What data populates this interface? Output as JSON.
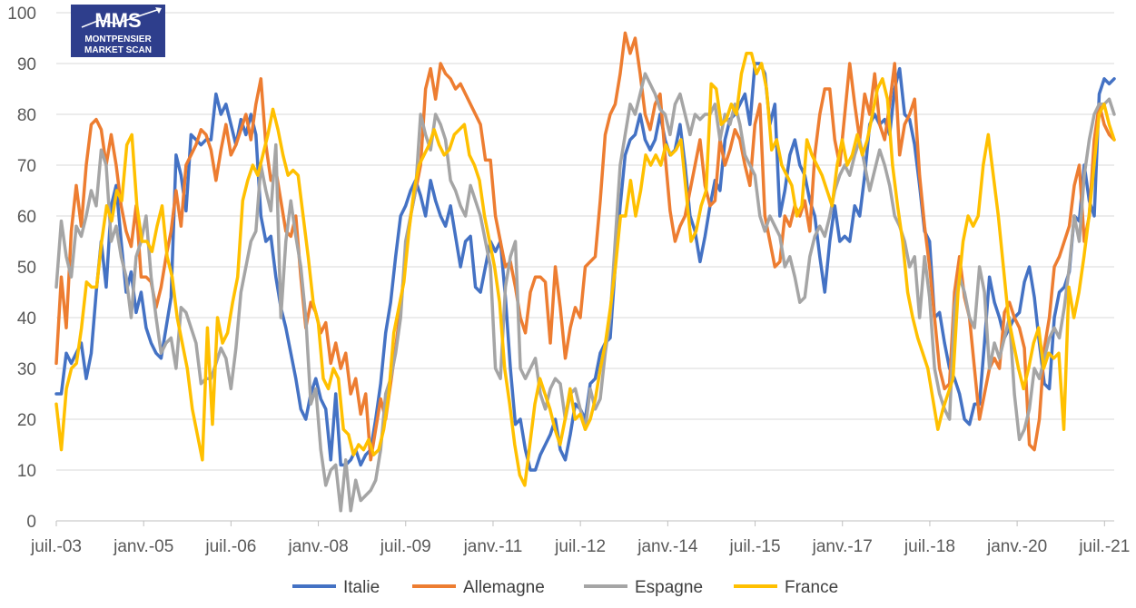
{
  "logo": {
    "mark": "MMS",
    "line1": "MONTPENSIER",
    "line2": "MARKET SCAN",
    "bg_color": "#2e3e8c"
  },
  "chart_data": {
    "type": "line",
    "title": "",
    "xlabel": "",
    "ylabel": "",
    "ylim": [
      0,
      100
    ],
    "yticks": [
      0,
      10,
      20,
      30,
      40,
      50,
      60,
      70,
      80,
      90,
      100
    ],
    "x_tick_labels": [
      "juil.-03",
      "janv.-05",
      "juil.-06",
      "janv.-08",
      "juil.-09",
      "janv.-11",
      "juil.-12",
      "janv.-14",
      "juil.-15",
      "janv.-17",
      "juil.-18",
      "janv.-20",
      "juil.-21"
    ],
    "x_start": "2003-07",
    "x_end": "2021-09",
    "grid": "horizontal",
    "legend_position": "bottom",
    "series": [
      {
        "name": "Italie",
        "color": "#4472c4",
        "values": [
          25,
          25,
          33,
          31,
          33,
          35,
          28,
          33,
          45,
          55,
          46,
          62,
          66,
          55,
          45,
          49,
          41,
          45,
          38,
          35,
          33,
          32,
          38,
          44,
          72,
          68,
          61,
          76,
          75,
          74,
          75,
          75,
          84,
          80,
          82,
          78,
          74,
          79,
          76,
          80,
          76,
          60,
          55,
          56,
          48,
          42,
          38,
          33,
          28,
          22,
          20,
          25,
          28,
          24,
          22,
          12,
          25,
          11,
          11,
          12,
          14,
          11,
          13,
          14,
          20,
          27,
          37,
          43,
          52,
          60,
          62,
          65,
          67,
          64,
          60,
          67,
          63,
          60,
          58,
          62,
          56,
          50,
          55,
          56,
          46,
          45,
          50,
          55,
          53,
          55,
          44,
          30,
          19,
          20,
          14,
          10,
          10,
          13,
          15,
          17,
          20,
          14,
          12,
          17,
          23,
          22,
          20,
          27,
          28,
          33,
          35,
          36,
          50,
          62,
          72,
          75,
          76,
          80,
          75,
          73,
          75,
          80,
          75,
          72,
          73,
          78,
          70,
          60,
          57,
          51,
          56,
          62,
          67,
          65,
          75,
          79,
          80,
          82,
          84,
          78,
          90,
          90,
          88,
          78,
          82,
          60,
          65,
          72,
          75,
          70,
          68,
          63,
          60,
          52,
          45,
          55,
          62,
          55,
          56,
          55,
          62,
          60,
          68,
          78,
          80,
          78,
          79,
          76,
          85,
          89,
          80,
          79,
          74,
          66,
          57,
          55,
          40,
          41,
          35,
          30,
          28,
          25,
          20,
          19,
          23,
          23,
          35,
          48,
          43,
          40,
          36,
          38,
          40,
          41,
          47,
          50,
          44,
          35,
          27,
          26,
          40,
          45,
          46,
          49,
          60,
          59,
          70,
          63,
          60,
          84,
          87,
          86,
          87
        ]
      },
      {
        "name": "Allemagne",
        "color": "#ed7d31",
        "values": [
          31,
          48,
          38,
          57,
          66,
          58,
          70,
          78,
          79,
          77,
          70,
          76,
          70,
          62,
          57,
          54,
          62,
          48,
          48,
          47,
          42,
          46,
          52,
          57,
          65,
          58,
          70,
          72,
          74,
          77,
          76,
          73,
          67,
          73,
          78,
          72,
          74,
          77,
          80,
          75,
          82,
          87,
          74,
          67,
          69,
          63,
          57,
          56,
          60,
          48,
          38,
          43,
          41,
          37,
          39,
          31,
          35,
          30,
          33,
          25,
          28,
          21,
          25,
          12,
          18,
          24,
          20,
          27,
          34,
          42,
          52,
          60,
          65,
          70,
          85,
          89,
          83,
          90,
          88,
          87,
          85,
          86,
          84,
          82,
          80,
          78,
          71,
          71,
          60,
          55,
          50,
          51,
          46,
          40,
          37,
          45,
          48,
          48,
          47,
          35,
          50,
          42,
          32,
          38,
          42,
          40,
          50,
          51,
          52,
          63,
          76,
          80,
          82,
          88,
          96,
          92,
          95,
          88,
          80,
          77,
          82,
          84,
          72,
          61,
          55,
          58,
          60,
          65,
          70,
          75,
          66,
          62,
          63,
          75,
          70,
          73,
          77,
          75,
          70,
          66,
          78,
          82,
          60,
          55,
          50,
          51,
          60,
          58,
          62,
          60,
          63,
          57,
          72,
          80,
          85,
          85,
          75,
          70,
          80,
          90,
          82,
          75,
          84,
          80,
          88,
          78,
          75,
          82,
          90,
          72,
          78,
          80,
          83,
          68,
          58,
          50,
          40,
          30,
          26,
          27,
          45,
          52,
          44,
          40,
          30,
          20,
          25,
          30,
          32,
          30,
          41,
          43,
          40,
          38,
          34,
          15,
          14,
          20,
          34,
          40,
          50,
          52,
          55,
          58,
          66,
          70,
          55,
          60,
          75,
          82,
          78,
          76,
          75
        ]
      },
      {
        "name": "Espagne",
        "color": "#a5a5a5",
        "values": [
          46,
          59,
          52,
          48,
          58,
          56,
          60,
          65,
          62,
          73,
          70,
          55,
          58,
          52,
          48,
          40,
          52,
          55,
          60,
          48,
          40,
          33,
          35,
          36,
          30,
          42,
          41,
          38,
          35,
          27,
          28,
          28,
          31,
          34,
          32,
          26,
          34,
          45,
          50,
          55,
          57,
          70,
          65,
          61,
          74,
          40,
          55,
          63,
          56,
          50,
          40,
          23,
          26,
          14,
          7,
          10,
          11,
          2,
          12,
          2,
          8,
          4,
          5,
          6,
          8,
          14,
          25,
          28,
          33,
          40,
          55,
          60,
          65,
          80,
          76,
          73,
          80,
          78,
          75,
          67,
          65,
          62,
          60,
          66,
          63,
          60,
          55,
          50,
          30,
          28,
          46,
          52,
          55,
          30,
          28,
          30,
          32,
          25,
          22,
          26,
          28,
          27,
          20,
          25,
          26,
          22,
          18,
          26,
          22,
          24,
          33,
          40,
          55,
          70,
          76,
          82,
          80,
          84,
          88,
          86,
          84,
          81,
          80,
          76,
          82,
          84,
          80,
          76,
          80,
          79,
          80,
          80,
          82,
          75,
          80,
          78,
          82,
          78,
          72,
          70,
          68,
          60,
          57,
          60,
          58,
          56,
          50,
          52,
          48,
          43,
          44,
          52,
          56,
          58,
          56,
          60,
          65,
          68,
          70,
          68,
          72,
          75,
          70,
          65,
          69,
          73,
          70,
          66,
          60,
          58,
          55,
          50,
          52,
          40,
          52,
          44,
          30,
          25,
          22,
          20,
          42,
          48,
          45,
          40,
          38,
          50,
          45,
          30,
          35,
          32,
          36,
          40,
          25,
          16,
          18,
          22,
          30,
          28,
          32,
          36,
          38,
          36,
          42,
          50,
          60,
          55,
          68,
          75,
          80,
          82,
          82,
          83,
          80
        ]
      },
      {
        "name": "France",
        "color": "#ffc000",
        "values": [
          23,
          14,
          26,
          30,
          31,
          38,
          47,
          46,
          46,
          55,
          62,
          59,
          65,
          63,
          74,
          76,
          62,
          55,
          55,
          53,
          58,
          62,
          52,
          48,
          40,
          35,
          30,
          22,
          17,
          12,
          38,
          19,
          40,
          35,
          37,
          43,
          48,
          63,
          67,
          70,
          68,
          72,
          76,
          81,
          77,
          72,
          68,
          69,
          68,
          60,
          52,
          43,
          39,
          28,
          26,
          30,
          28,
          18,
          17,
          13,
          15,
          14,
          16,
          13,
          14,
          18,
          25,
          37,
          42,
          47,
          57,
          65,
          70,
          72,
          74,
          77,
          74,
          72,
          73,
          76,
          77,
          78,
          72,
          70,
          67,
          60,
          55,
          50,
          43,
          30,
          23,
          15,
          9,
          7,
          15,
          23,
          28,
          25,
          22,
          18,
          15,
          20,
          26,
          20,
          21,
          18,
          20,
          24,
          30,
          35,
          42,
          50,
          60,
          60,
          67,
          60,
          65,
          72,
          70,
          72,
          70,
          74,
          72,
          73,
          75,
          65,
          55,
          57,
          62,
          65,
          86,
          85,
          78,
          79,
          82,
          80,
          88,
          92,
          92,
          88,
          90,
          85,
          73,
          75,
          70,
          68,
          66,
          60,
          62,
          75,
          72,
          70,
          68,
          65,
          62,
          70,
          75,
          70,
          72,
          76,
          72,
          75,
          80,
          85,
          87,
          83,
          70,
          62,
          55,
          45,
          40,
          36,
          33,
          30,
          24,
          18,
          22,
          25,
          28,
          45,
          55,
          60,
          58,
          60,
          70,
          76,
          68,
          60,
          50,
          40,
          35,
          30,
          26,
          30,
          35,
          38,
          30,
          33,
          32,
          33,
          18,
          46,
          40,
          45,
          52,
          60,
          70,
          80,
          82,
          78,
          75
        ]
      }
    ]
  }
}
